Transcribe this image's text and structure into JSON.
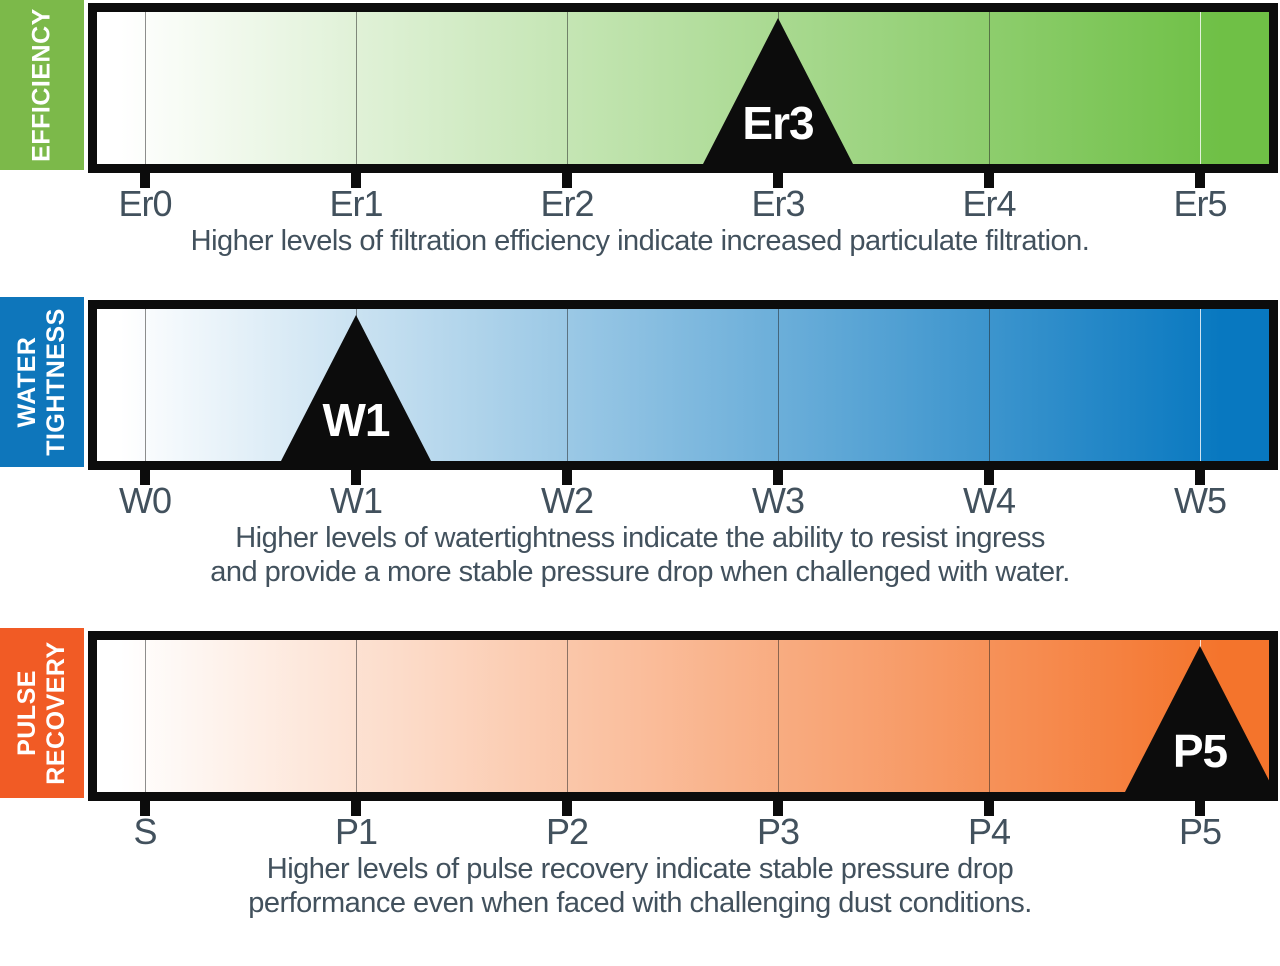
{
  "sections": [
    {
      "name": "efficiency",
      "label_lines": [
        "EFFICIENCY"
      ],
      "ticks": [
        "Er0",
        "Er1",
        "Er2",
        "Er3",
        "Er4",
        "Er5"
      ],
      "marker": "Er3",
      "marker_level": 3,
      "description_lines": [
        "Higher levels of filtration efficiency indicate increased particulate filtration."
      ],
      "colors": {
        "strip": "#7cb94a",
        "scale_end": "#6fc046",
        "scale_start": "#ffffff"
      }
    },
    {
      "name": "water-tightness",
      "label_lines": [
        "WATER",
        "TIGHTNESS"
      ],
      "ticks": [
        "W0",
        "W1",
        "W2",
        "W3",
        "W4",
        "W5"
      ],
      "marker": "W1",
      "marker_level": 1,
      "description_lines": [
        "Higher levels of watertightness indicate the ability to resist ingress",
        "and provide a more stable pressure drop when challenged with water."
      ],
      "colors": {
        "strip": "#0e76bb",
        "scale_end": "#0878c0",
        "scale_start": "#ffffff"
      }
    },
    {
      "name": "pulse-recovery",
      "label_lines": [
        "PULSE",
        "RECOVERY"
      ],
      "ticks": [
        "S",
        "P1",
        "P2",
        "P3",
        "P4",
        "P5"
      ],
      "marker": "P5",
      "marker_level": 5,
      "description_lines": [
        "Higher levels of pulse recovery indicate stable pressure drop",
        "performance even when faced with challenging dust conditions."
      ],
      "colors": {
        "strip": "#f15b25",
        "scale_end": "#f4742c",
        "scale_start": "#ffffff"
      }
    }
  ],
  "shared_colors": {
    "border_black": "#0c0c0c",
    "tick_text": "#42515d",
    "marker_text": "#ffffff",
    "last_gridline": "#ffffff"
  }
}
